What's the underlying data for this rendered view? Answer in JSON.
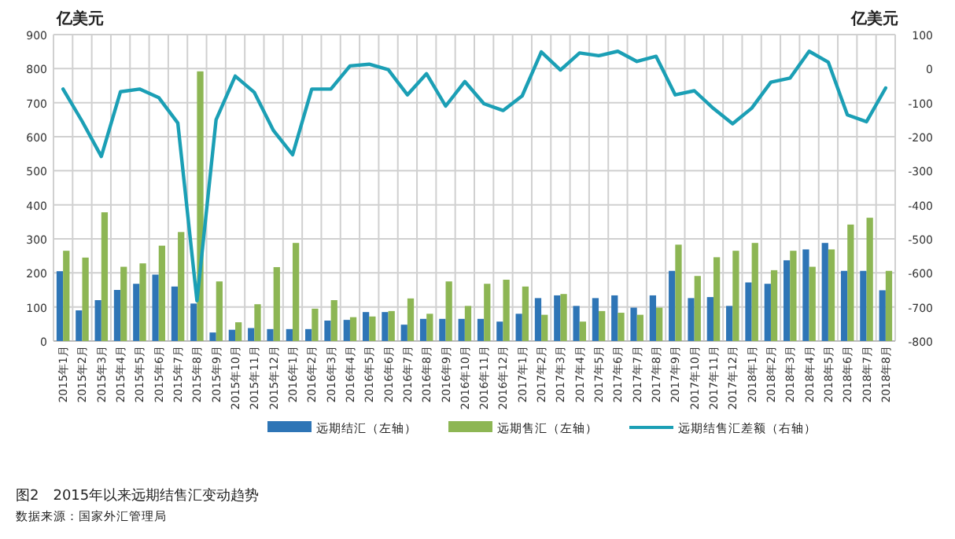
{
  "chart_data": {
    "type": "bar",
    "ylabel": "亿美元",
    "y2label": "亿美元",
    "categories": [
      "2015年1月",
      "2015年2月",
      "2015年3月",
      "2015年4月",
      "2015年5月",
      "2015年6月",
      "2015年7月",
      "2015年8月",
      "2015年9月",
      "2015年10月",
      "2015年11月",
      "2015年12月",
      "2016年1月",
      "2016年2月",
      "2016年3月",
      "2016年4月",
      "2016年5月",
      "2016年6月",
      "2016年7月",
      "2016年8月",
      "2016年9月",
      "2016年10月",
      "2016年11月",
      "2016年12月",
      "2017年1月",
      "2017年2月",
      "2017年3月",
      "2017年4月",
      "2017年5月",
      "2017年6月",
      "2017年7月",
      "2017年8月",
      "2017年9月",
      "2017年10月",
      "2017年11月",
      "2017年12月",
      "2018年1月",
      "2018年2月",
      "2018年3月",
      "2018年4月",
      "2018年5月",
      "2018年6月",
      "2018年7月",
      "2018年8月"
    ],
    "series": [
      {
        "name": "远期结汇（左轴）",
        "color": "#2e75b6",
        "values": [
          205,
          90,
          120,
          150,
          168,
          195,
          160,
          110,
          25,
          33,
          38,
          35,
          35,
          35,
          60,
          62,
          85,
          85,
          48,
          65,
          65,
          65,
          65,
          57,
          80,
          126,
          134,
          103,
          126,
          134,
          98,
          134,
          206,
          126,
          129,
          103,
          172,
          168,
          237,
          269,
          288,
          206,
          206,
          149
        ]
      },
      {
        "name": "远期售汇（左轴）",
        "color": "#8db654",
        "values": [
          265,
          245,
          378,
          218,
          228,
          280,
          320,
          792,
          175,
          55,
          108,
          217,
          288,
          95,
          120,
          70,
          72,
          88,
          125,
          80,
          175,
          103,
          168,
          180,
          160,
          77,
          138,
          57,
          88,
          83,
          77,
          98,
          283,
          191,
          246,
          265,
          288,
          208,
          265,
          218,
          269,
          342,
          362,
          206
        ]
      },
      {
        "name": "远期结售汇差额（右轴）",
        "type": "line",
        "axis": "y2",
        "color": "#1b9fb5",
        "values": [
          -60,
          -155,
          -258,
          -68,
          -60,
          -85,
          -160,
          -682,
          -150,
          -22,
          -70,
          -182,
          -253,
          -60,
          -60,
          8,
          13,
          -3,
          -77,
          -15,
          -110,
          -38,
          -103,
          -123,
          -80,
          49,
          -4,
          46,
          38,
          51,
          21,
          36,
          -77,
          -65,
          -117,
          -162,
          -116,
          -40,
          -28,
          51,
          19,
          -136,
          -156,
          -57
        ]
      }
    ],
    "ylim": [
      0,
      900
    ],
    "yticks": [
      0,
      100,
      200,
      300,
      400,
      500,
      600,
      700,
      800,
      900
    ],
    "y2lim": [
      -800,
      100
    ],
    "y2ticks": [
      -800,
      -700,
      -600,
      -500,
      -400,
      -300,
      -200,
      -100,
      0,
      100
    ],
    "grid": true,
    "legend": "bottom",
    "annotations": [
      "图2　2015年以来远期结售汇变动趋势",
      "数据来源：国家外汇管理局"
    ]
  }
}
